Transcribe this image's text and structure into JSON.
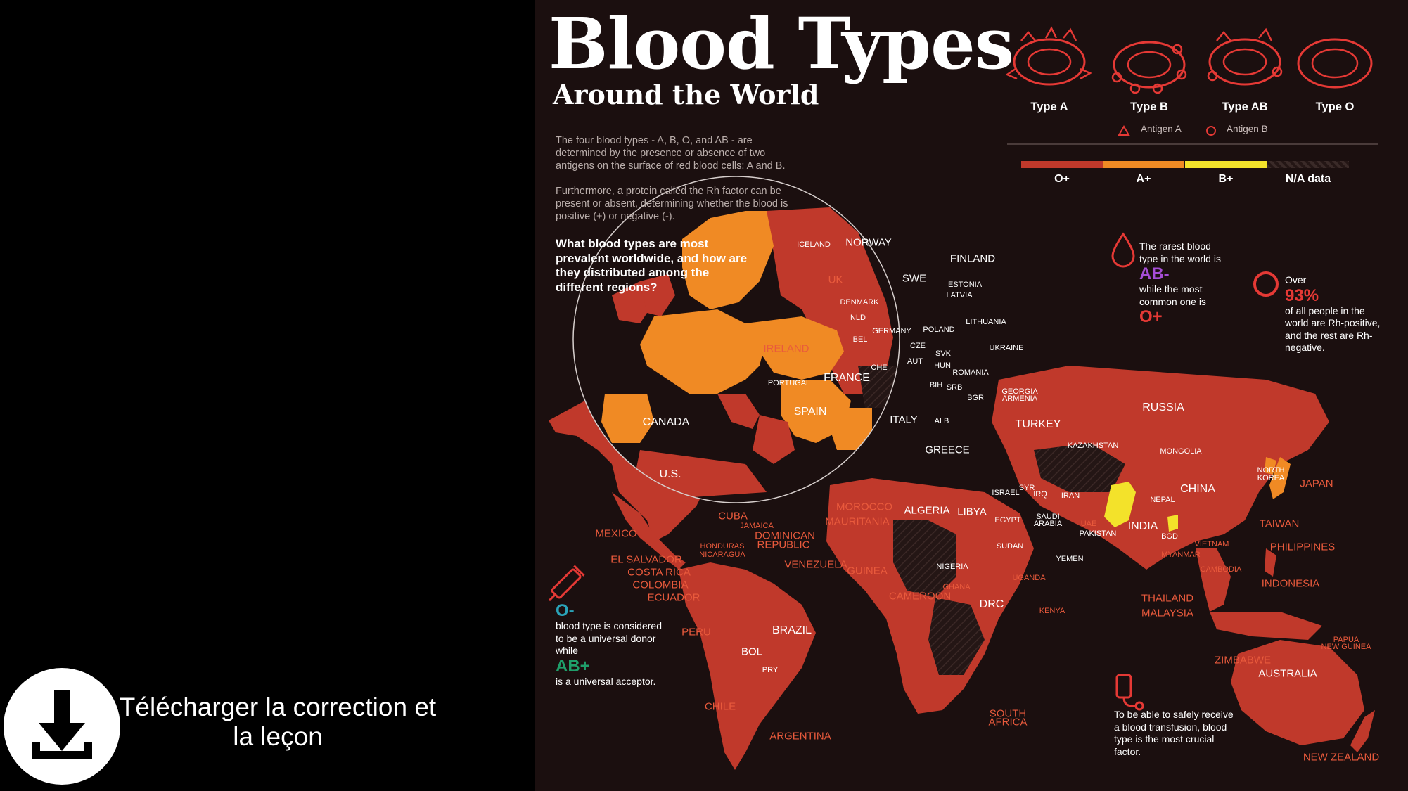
{
  "video": {
    "download_label": "Télécharger la correction et\nla leçon",
    "download_icon": "download-icon"
  },
  "infographic": {
    "title": "Blood Types",
    "subtitle": "Around the World",
    "intro1": "The four blood types - A, B, O, and AB - are determined by the presence or absence of two antigens on the surface of red blood cells: A and B.",
    "intro2": "Furthermore, a protein called  the Rh factor can be present or absent, determining whether the blood is positive (+) or negative (-).",
    "question": "What blood types are most prevalent worldwide, and how are they distributed among the different regions?",
    "types": [
      "Type A",
      "Type B",
      "Type AB",
      "Type O"
    ],
    "antigen_a": "Antigen A",
    "antigen_b": "Antigen B",
    "legend": [
      {
        "label": "O+",
        "color": "#c0392b"
      },
      {
        "label": "A+",
        "color": "#f08a24"
      },
      {
        "label": "B+",
        "color": "#f3e22a"
      },
      {
        "label": "N/A data",
        "color": "#3a2a28"
      }
    ],
    "fact_rarest": {
      "pre": "The rarest blood type in the world is",
      "rare": "AB-",
      "mid": "while the most common one is",
      "common": "O+"
    },
    "fact_rh": {
      "pre": "Over",
      "pct": "93%",
      "post": "of all people in the world are Rh-positive, and the rest are Rh-negative."
    },
    "fact_donor": {
      "o_neg": "O-",
      "text1": "blood type is considered to be a universal donor while",
      "ab_pos": "AB+",
      "text2": "is a universal acceptor."
    },
    "fact_transfusion": "To be able to safely receive a blood transfusion, blood type is the most crucial factor.",
    "colors": {
      "o_pos": "#c0392b",
      "a_pos": "#f08a24",
      "b_pos": "#f3e22a",
      "bg": "#1b0f0f",
      "rare": "#a64dd6",
      "donor": "#2aa3b8",
      "acceptor": "#1f9e6a"
    }
  },
  "countries": [
    {
      "name": "ICELAND",
      "cls": "sm"
    },
    {
      "name": "NORWAY",
      "cls": "md"
    },
    {
      "name": "SWE",
      "cls": "md"
    },
    {
      "name": "FINLAND",
      "cls": "md"
    },
    {
      "name": "UK",
      "cls": "md out"
    },
    {
      "name": "ESTONIA",
      "cls": "sm"
    },
    {
      "name": "LATVIA",
      "cls": "sm"
    },
    {
      "name": "DENMARK",
      "cls": "sm"
    },
    {
      "name": "NLD",
      "cls": "sm"
    },
    {
      "name": "LITHUANIA",
      "cls": "sm"
    },
    {
      "name": "GERMANY",
      "cls": "sm"
    },
    {
      "name": "POLAND",
      "cls": "sm"
    },
    {
      "name": "IRELAND",
      "cls": "md out"
    },
    {
      "name": "BEL",
      "cls": "sm"
    },
    {
      "name": "CZE",
      "cls": "sm"
    },
    {
      "name": "UKRAINE",
      "cls": "sm"
    },
    {
      "name": "SVK",
      "cls": "sm"
    },
    {
      "name": "AUT",
      "cls": "sm"
    },
    {
      "name": "CHE",
      "cls": "sm"
    },
    {
      "name": "HUN",
      "cls": "sm"
    },
    {
      "name": "FRANCE",
      "cls": "lg"
    },
    {
      "name": "ROMANIA",
      "cls": "sm"
    },
    {
      "name": "PORTUGAL",
      "cls": "sm"
    },
    {
      "name": "BIH",
      "cls": "sm"
    },
    {
      "name": "SRB",
      "cls": "sm"
    },
    {
      "name": "BGR",
      "cls": "sm"
    },
    {
      "name": "GEORGIA",
      "cls": "sm"
    },
    {
      "name": "ARMENIA",
      "cls": "sm"
    },
    {
      "name": "SPAIN",
      "cls": "lg"
    },
    {
      "name": "ITALY",
      "cls": "md"
    },
    {
      "name": "ALB",
      "cls": "sm"
    },
    {
      "name": "TURKEY",
      "cls": "lg"
    },
    {
      "name": "GREECE",
      "cls": "md"
    },
    {
      "name": "CANADA",
      "cls": "lg"
    },
    {
      "name": "RUSSIA",
      "cls": "lg"
    },
    {
      "name": "KAZAKHSTAN",
      "cls": "sm"
    },
    {
      "name": "MONGOLIA",
      "cls": "sm"
    },
    {
      "name": "U.S.",
      "cls": "lg"
    },
    {
      "name": "NORTH",
      "cls": "sm"
    },
    {
      "name": "KOREA",
      "cls": "sm"
    },
    {
      "name": "JAPAN",
      "cls": "md out"
    },
    {
      "name": "SYR",
      "cls": "sm"
    },
    {
      "name": "IRQ",
      "cls": "sm"
    },
    {
      "name": "ISRAEL",
      "cls": "sm"
    },
    {
      "name": "CHINA",
      "cls": "lg"
    },
    {
      "name": "MOROCCO",
      "cls": "md out"
    },
    {
      "name": "ALGERIA",
      "cls": "md"
    },
    {
      "name": "LIBYA",
      "cls": "md"
    },
    {
      "name": "IRAN",
      "cls": "sm"
    },
    {
      "name": "NEPAL",
      "cls": "sm"
    },
    {
      "name": "MAURITANIA",
      "cls": "md out"
    },
    {
      "name": "EGYPT",
      "cls": "sm"
    },
    {
      "name": "CUBA",
      "cls": "md out"
    },
    {
      "name": "SAUDI",
      "cls": "sm"
    },
    {
      "name": "ARABIA",
      "cls": "sm"
    },
    {
      "name": "UAE",
      "cls": "sm out"
    },
    {
      "name": "INDIA",
      "cls": "lg"
    },
    {
      "name": "TAIWAN",
      "cls": "md out"
    },
    {
      "name": "JAMAICA",
      "cls": "sm out"
    },
    {
      "name": "DOMINICAN",
      "cls": "md out"
    },
    {
      "name": "PAKISTAN",
      "cls": "sm"
    },
    {
      "name": "BGD",
      "cls": "sm"
    },
    {
      "name": "MEXICO",
      "cls": "md out"
    },
    {
      "name": "REPUBLIC",
      "cls": "md out"
    },
    {
      "name": "SUDAN",
      "cls": "sm"
    },
    {
      "name": "VIETNAM",
      "cls": "sm out"
    },
    {
      "name": "PHILIPPINES",
      "cls": "md out"
    },
    {
      "name": "HONDURAS",
      "cls": "sm out"
    },
    {
      "name": "NICARAGUA",
      "cls": "sm out"
    },
    {
      "name": "YEMEN",
      "cls": "sm"
    },
    {
      "name": "MYANMAR",
      "cls": "sm out"
    },
    {
      "name": "EL SALVADOR",
      "cls": "md out"
    },
    {
      "name": "VENEZUELA",
      "cls": "md out"
    },
    {
      "name": "NIGERIA",
      "cls": "sm"
    },
    {
      "name": "CAMBODIA",
      "cls": "sm out"
    },
    {
      "name": "COSTA RICA",
      "cls": "md out"
    },
    {
      "name": "GUINEA",
      "cls": "md out"
    },
    {
      "name": "UGANDA",
      "cls": "sm out"
    },
    {
      "name": "INDONESIA",
      "cls": "md out"
    },
    {
      "name": "COLOMBIA",
      "cls": "md out"
    },
    {
      "name": "GHANA",
      "cls": "sm out"
    },
    {
      "name": "ECUADOR",
      "cls": "md out"
    },
    {
      "name": "CAMEROON",
      "cls": "md out"
    },
    {
      "name": "DRC",
      "cls": "lg"
    },
    {
      "name": "THAILAND",
      "cls": "md out"
    },
    {
      "name": "KENYA",
      "cls": "sm out"
    },
    {
      "name": "MALAYSIA",
      "cls": "md out"
    },
    {
      "name": "BRAZIL",
      "cls": "lg"
    },
    {
      "name": "PERU",
      "cls": "md out"
    },
    {
      "name": "PAPUA",
      "cls": "sm out"
    },
    {
      "name": "NEW GUINEA",
      "cls": "sm out"
    },
    {
      "name": "BOL",
      "cls": "md"
    },
    {
      "name": "ZIMBABWE",
      "cls": "md out"
    },
    {
      "name": "PRY",
      "cls": "sm"
    },
    {
      "name": "AUSTRALIA",
      "cls": "md"
    },
    {
      "name": "CHILE",
      "cls": "md out"
    },
    {
      "name": "SOUTH",
      "cls": "md out"
    },
    {
      "name": "AFRICA",
      "cls": "md out"
    },
    {
      "name": "ARGENTINA",
      "cls": "md out"
    },
    {
      "name": "NEW ZEALAND",
      "cls": "md out"
    }
  ]
}
